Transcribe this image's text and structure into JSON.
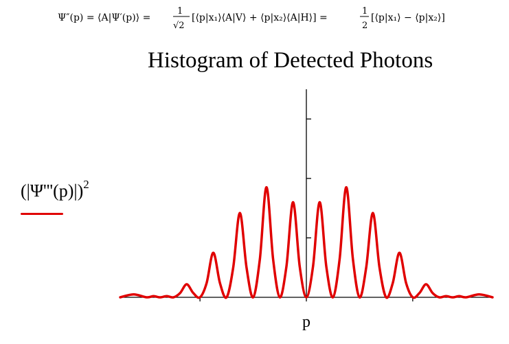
{
  "equation": {
    "lhs": "Ψ″(p) = ⟨A|Ψ′(p)⟩ =",
    "frac1_num": "1",
    "frac1_den": "√2",
    "middle": "[⟨p|x₁⟩⟨A|V⟩ + ⟨p|x₂⟩⟨A|H⟩] =",
    "frac2_num": "1",
    "frac2_den": "2",
    "tail": "[⟨p|x₁⟩ − ⟨p|x₂⟩]"
  },
  "chart_data": {
    "type": "line",
    "title": "Histogram of Detected Photons",
    "xlabel": "p",
    "ylabel": "(|Ψ'''(p)|)",
    "ylabel_exponent": "2",
    "color": "#e00000",
    "axis_color": "#000000",
    "grid": false,
    "xlim": [
      -7,
      7
    ],
    "ylim": [
      0,
      3.5
    ],
    "x_ticks": [
      -4,
      0,
      4
    ],
    "y_ticks": [
      1,
      2,
      3
    ],
    "tick_labels_shown": false,
    "series": [
      {
        "x": [
          -7.0,
          -6.5,
          -6.0,
          -5.75,
          -5.5,
          -5.25,
          -5.0,
          -4.75,
          -4.5,
          -4.25,
          -4.0,
          -3.75,
          -3.5,
          -3.25,
          -3.0,
          -2.75,
          -2.5,
          -2.25,
          -2.0,
          -1.75,
          -1.5,
          -1.25,
          -1.0,
          -0.75,
          -0.5,
          -0.25,
          0.0,
          0.25,
          0.5,
          0.75,
          1.0,
          1.25,
          1.5,
          1.75,
          2.0,
          2.25,
          2.5,
          2.75,
          3.0,
          3.25,
          3.5,
          3.75,
          4.0,
          4.25,
          4.5,
          4.75,
          5.0,
          5.25,
          5.5,
          5.75,
          6.0,
          6.5,
          7.0
        ],
        "y": [
          0.0,
          0.05,
          0.0,
          0.02,
          0.0,
          0.02,
          0.0,
          0.07,
          0.22,
          0.07,
          0.0,
          0.24,
          0.75,
          0.24,
          0.0,
          0.5,
          1.42,
          0.5,
          0.0,
          0.64,
          1.85,
          0.64,
          0.0,
          0.52,
          1.6,
          0.52,
          0.0,
          0.52,
          1.6,
          0.52,
          0.0,
          0.64,
          1.85,
          0.64,
          0.0,
          0.5,
          1.42,
          0.5,
          0.0,
          0.24,
          0.75,
          0.24,
          0.0,
          0.07,
          0.22,
          0.07,
          0.0,
          0.02,
          0.0,
          0.02,
          0.0,
          0.05,
          0.0
        ]
      }
    ]
  }
}
